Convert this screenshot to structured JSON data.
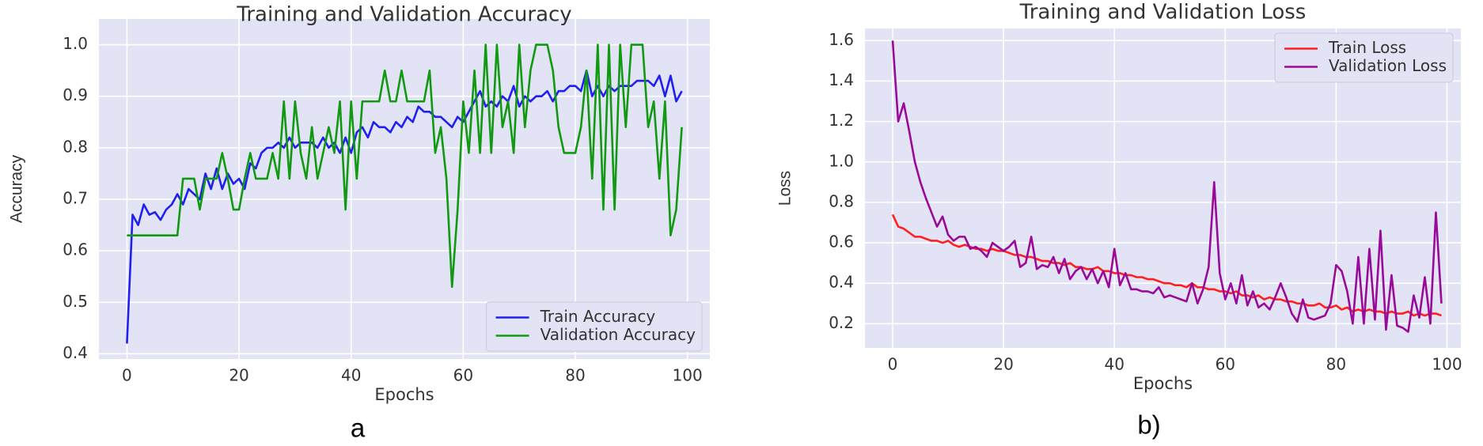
{
  "chart_data": [
    {
      "type": "line",
      "title": "Training and Validation Accuracy",
      "xlabel": "Epochs",
      "ylabel": "Accuracy",
      "caption": "a",
      "x": [
        0,
        1,
        2,
        3,
        4,
        5,
        6,
        7,
        8,
        9,
        10,
        11,
        12,
        13,
        14,
        15,
        16,
        17,
        18,
        19,
        20,
        21,
        22,
        23,
        24,
        25,
        26,
        27,
        28,
        29,
        30,
        31,
        32,
        33,
        34,
        35,
        36,
        37,
        38,
        39,
        40,
        41,
        42,
        43,
        44,
        45,
        46,
        47,
        48,
        49,
        50,
        51,
        52,
        53,
        54,
        55,
        56,
        57,
        58,
        59,
        60,
        61,
        62,
        63,
        64,
        65,
        66,
        67,
        68,
        69,
        70,
        71,
        72,
        73,
        74,
        75,
        76,
        77,
        78,
        79,
        80,
        81,
        82,
        83,
        84,
        85,
        86,
        87,
        88,
        89,
        90,
        91,
        92,
        93,
        94,
        95,
        96,
        97,
        98,
        99
      ],
      "series": [
        {
          "name": "Train Accuracy",
          "color": "#1f1ff0",
          "values": [
            0.42,
            0.67,
            0.65,
            0.69,
            0.67,
            0.675,
            0.66,
            0.68,
            0.69,
            0.71,
            0.69,
            0.72,
            0.71,
            0.7,
            0.75,
            0.72,
            0.76,
            0.72,
            0.75,
            0.73,
            0.74,
            0.72,
            0.77,
            0.76,
            0.79,
            0.8,
            0.8,
            0.81,
            0.8,
            0.82,
            0.8,
            0.81,
            0.81,
            0.81,
            0.8,
            0.82,
            0.8,
            0.81,
            0.79,
            0.82,
            0.79,
            0.83,
            0.84,
            0.82,
            0.85,
            0.84,
            0.84,
            0.83,
            0.85,
            0.84,
            0.86,
            0.85,
            0.88,
            0.87,
            0.87,
            0.86,
            0.86,
            0.85,
            0.84,
            0.86,
            0.85,
            0.87,
            0.89,
            0.91,
            0.88,
            0.89,
            0.88,
            0.9,
            0.89,
            0.92,
            0.88,
            0.9,
            0.89,
            0.9,
            0.9,
            0.91,
            0.89,
            0.91,
            0.91,
            0.92,
            0.92,
            0.91,
            0.95,
            0.9,
            0.92,
            0.9,
            0.92,
            0.91,
            0.92,
            0.92,
            0.92,
            0.93,
            0.93,
            0.93,
            0.92,
            0.94,
            0.9,
            0.94,
            0.89,
            0.91
          ]
        },
        {
          "name": "Validation Accuracy",
          "color": "#119a11",
          "values": [
            0.63,
            0.63,
            0.63,
            0.63,
            0.63,
            0.63,
            0.63,
            0.63,
            0.63,
            0.63,
            0.74,
            0.74,
            0.74,
            0.68,
            0.74,
            0.74,
            0.74,
            0.79,
            0.74,
            0.68,
            0.68,
            0.74,
            0.79,
            0.74,
            0.74,
            0.74,
            0.79,
            0.74,
            0.89,
            0.74,
            0.89,
            0.79,
            0.74,
            0.84,
            0.74,
            0.79,
            0.84,
            0.79,
            0.89,
            0.68,
            0.89,
            0.74,
            0.89,
            0.89,
            0.89,
            0.89,
            0.95,
            0.89,
            0.89,
            0.95,
            0.89,
            0.89,
            0.89,
            0.89,
            0.95,
            0.79,
            0.84,
            0.74,
            0.53,
            0.68,
            0.89,
            0.79,
            0.95,
            0.79,
            1.0,
            0.79,
            1.0,
            0.84,
            0.89,
            0.79,
            1.0,
            0.84,
            0.95,
            1.0,
            1.0,
            1.0,
            0.95,
            0.84,
            0.79,
            0.79,
            0.79,
            0.84,
            0.95,
            0.74,
            1.0,
            0.68,
            1.0,
            0.68,
            1.0,
            0.84,
            1.0,
            1.0,
            1.0,
            0.84,
            0.89,
            0.74,
            0.89,
            0.63,
            0.68,
            0.84
          ]
        }
      ],
      "xlim": [
        -5,
        104
      ],
      "xticks": [
        0,
        20,
        40,
        60,
        80,
        100
      ],
      "ylim": [
        0.39,
        1.05
      ],
      "yticks": [
        0.4,
        0.5,
        0.6,
        0.7,
        0.8,
        0.9,
        {
          "value": 1,
          "label": "1.0"
        }
      ],
      "grid": true,
      "legend": "lower right"
    },
    {
      "type": "line",
      "title": "Training and Validation Loss",
      "xlabel": "Epochs",
      "ylabel": "Loss",
      "caption": "b)",
      "x": [
        0,
        1,
        2,
        3,
        4,
        5,
        6,
        7,
        8,
        9,
        10,
        11,
        12,
        13,
        14,
        15,
        16,
        17,
        18,
        19,
        20,
        21,
        22,
        23,
        24,
        25,
        26,
        27,
        28,
        29,
        30,
        31,
        32,
        33,
        34,
        35,
        36,
        37,
        38,
        39,
        40,
        41,
        42,
        43,
        44,
        45,
        46,
        47,
        48,
        49,
        50,
        51,
        52,
        53,
        54,
        55,
        56,
        57,
        58,
        59,
        60,
        61,
        62,
        63,
        64,
        65,
        66,
        67,
        68,
        69,
        70,
        71,
        72,
        73,
        74,
        75,
        76,
        77,
        78,
        79,
        80,
        81,
        82,
        83,
        84,
        85,
        86,
        87,
        88,
        89,
        90,
        91,
        92,
        93,
        94,
        95,
        96,
        97,
        98,
        99
      ],
      "series": [
        {
          "name": "Train Loss",
          "color": "#ff1f1f",
          "values": [
            0.74,
            0.68,
            0.67,
            0.65,
            0.63,
            0.63,
            0.62,
            0.61,
            0.61,
            0.6,
            0.61,
            0.59,
            0.58,
            0.59,
            0.58,
            0.57,
            0.57,
            0.56,
            0.57,
            0.56,
            0.56,
            0.55,
            0.54,
            0.54,
            0.53,
            0.53,
            0.52,
            0.51,
            0.51,
            0.5,
            0.5,
            0.49,
            0.5,
            0.48,
            0.48,
            0.47,
            0.47,
            0.48,
            0.46,
            0.46,
            0.45,
            0.45,
            0.44,
            0.44,
            0.43,
            0.43,
            0.42,
            0.42,
            0.41,
            0.4,
            0.4,
            0.39,
            0.39,
            0.38,
            0.4,
            0.38,
            0.38,
            0.37,
            0.37,
            0.36,
            0.36,
            0.35,
            0.36,
            0.34,
            0.34,
            0.33,
            0.34,
            0.32,
            0.33,
            0.32,
            0.32,
            0.31,
            0.31,
            0.3,
            0.3,
            0.29,
            0.29,
            0.3,
            0.28,
            0.28,
            0.29,
            0.27,
            0.28,
            0.26,
            0.27,
            0.26,
            0.27,
            0.26,
            0.26,
            0.25,
            0.26,
            0.25,
            0.25,
            0.26,
            0.24,
            0.25,
            0.24,
            0.25,
            0.25,
            0.24
          ]
        },
        {
          "name": "Validation Loss",
          "color": "#9a0a9a",
          "values": [
            1.6,
            1.2,
            1.29,
            1.15,
            1.0,
            0.9,
            0.82,
            0.75,
            0.68,
            0.73,
            0.64,
            0.61,
            0.63,
            0.63,
            0.57,
            0.58,
            0.56,
            0.53,
            0.6,
            0.58,
            0.56,
            0.58,
            0.61,
            0.48,
            0.5,
            0.63,
            0.47,
            0.49,
            0.48,
            0.53,
            0.45,
            0.52,
            0.42,
            0.46,
            0.48,
            0.42,
            0.47,
            0.4,
            0.46,
            0.38,
            0.57,
            0.39,
            0.45,
            0.37,
            0.37,
            0.36,
            0.36,
            0.35,
            0.38,
            0.33,
            0.34,
            0.33,
            0.32,
            0.31,
            0.4,
            0.3,
            0.37,
            0.48,
            0.9,
            0.45,
            0.32,
            0.4,
            0.3,
            0.44,
            0.29,
            0.36,
            0.28,
            0.3,
            0.27,
            0.33,
            0.4,
            0.33,
            0.25,
            0.21,
            0.32,
            0.23,
            0.22,
            0.23,
            0.24,
            0.3,
            0.49,
            0.46,
            0.36,
            0.2,
            0.53,
            0.2,
            0.57,
            0.22,
            0.66,
            0.17,
            0.44,
            0.19,
            0.18,
            0.16,
            0.34,
            0.23,
            0.43,
            0.2,
            0.75,
            0.3
          ]
        }
      ],
      "xlim": [
        -5,
        102.5
      ],
      "xticks": [
        0,
        20,
        40,
        60,
        80,
        100
      ],
      "ylim": [
        0.08,
        1.66
      ],
      "yticks": [
        0.2,
        0.4,
        0.6,
        0.8,
        {
          "value": 1,
          "label": "1.0"
        },
        1.2,
        1.4,
        1.6
      ],
      "grid": true,
      "legend": "upper right"
    }
  ]
}
